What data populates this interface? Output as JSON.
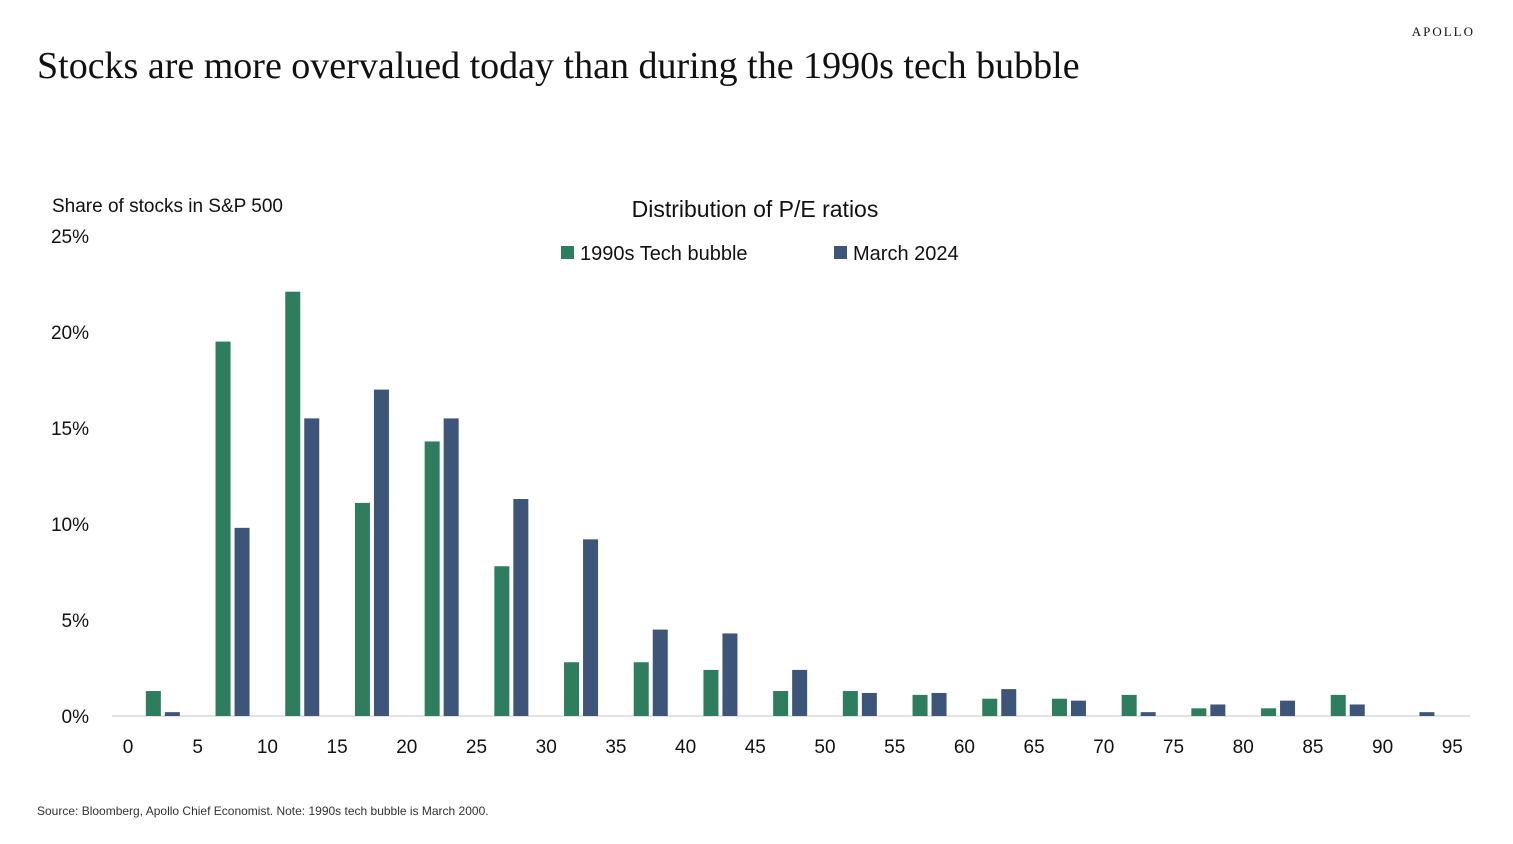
{
  "brand": "APOLLO",
  "headline": "Stocks are more overvalued today than during the 1990s tech bubble",
  "source": "Source: Bloomberg, Apollo Chief Economist. Note: 1990s tech bubble is March 2000.",
  "colors": {
    "series_1990s": "#2e7d5e",
    "series_2024": "#3d5578",
    "axis": "#d9d9d9"
  },
  "chart_data": {
    "type": "bar",
    "title": "Distribution of P/E ratios",
    "ylabel": "Share of stocks in S&P 500",
    "xlabel": "",
    "ylim": [
      0,
      25
    ],
    "y_ticks": [
      "0%",
      "5%",
      "10%",
      "15%",
      "20%",
      "25%"
    ],
    "x_ticks": [
      "0",
      "5",
      "10",
      "15",
      "20",
      "25",
      "30",
      "35",
      "40",
      "45",
      "50",
      "55",
      "60",
      "65",
      "70",
      "75",
      "80",
      "85",
      "90",
      "95"
    ],
    "legend_position": "top-center",
    "grid": false,
    "series": [
      {
        "name": "1990s Tech bubble",
        "x": [
          2.5,
          7.5,
          12.5,
          17.5,
          22.5,
          27.5,
          32.5,
          37.5,
          42.5,
          47.5,
          52.5,
          57.5,
          62.5,
          67.5,
          72.5,
          77.5,
          82.5,
          87.5,
          92.5
        ],
        "values": [
          1.3,
          19.5,
          22.1,
          11.1,
          14.3,
          7.8,
          2.8,
          2.8,
          2.4,
          1.3,
          1.3,
          1.1,
          0.9,
          0.9,
          1.1,
          0.4,
          0.4,
          1.1,
          0
        ]
      },
      {
        "name": "March 2024",
        "x": [
          2.5,
          7.5,
          12.5,
          17.5,
          22.5,
          27.5,
          32.5,
          37.5,
          42.5,
          47.5,
          52.5,
          57.5,
          62.5,
          67.5,
          72.5,
          77.5,
          82.5,
          87.5,
          92.5
        ],
        "values": [
          0.2,
          9.8,
          15.5,
          17.0,
          15.5,
          11.3,
          9.2,
          4.5,
          4.3,
          2.4,
          1.2,
          1.2,
          1.4,
          0.8,
          0.2,
          0.6,
          0.8,
          0.6,
          0.2
        ]
      }
    ]
  }
}
